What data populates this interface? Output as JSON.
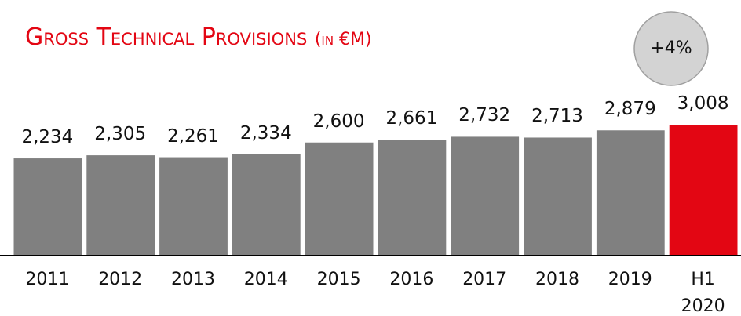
{
  "chart_data": {
    "type": "bar",
    "title": "Gross Technical Provisions",
    "subtitle": "(in €M)",
    "annotation": "+4%",
    "categories": [
      "2011",
      "2012",
      "2013",
      "2014",
      "2015",
      "2016",
      "2017",
      "2018",
      "2019",
      "H1 2020"
    ],
    "values": [
      2234,
      2305,
      2261,
      2334,
      2600,
      2661,
      2732,
      2713,
      2879,
      3008
    ],
    "value_labels": [
      "2,234",
      "2,305",
      "2,261",
      "2,334",
      "2,600",
      "2,661",
      "2,732",
      "2,713",
      "2,879",
      "3,008"
    ],
    "colors": [
      "#808080",
      "#808080",
      "#808080",
      "#808080",
      "#808080",
      "#808080",
      "#808080",
      "#808080",
      "#808080",
      "#e30613"
    ],
    "ylim": [
      0,
      3100
    ]
  }
}
